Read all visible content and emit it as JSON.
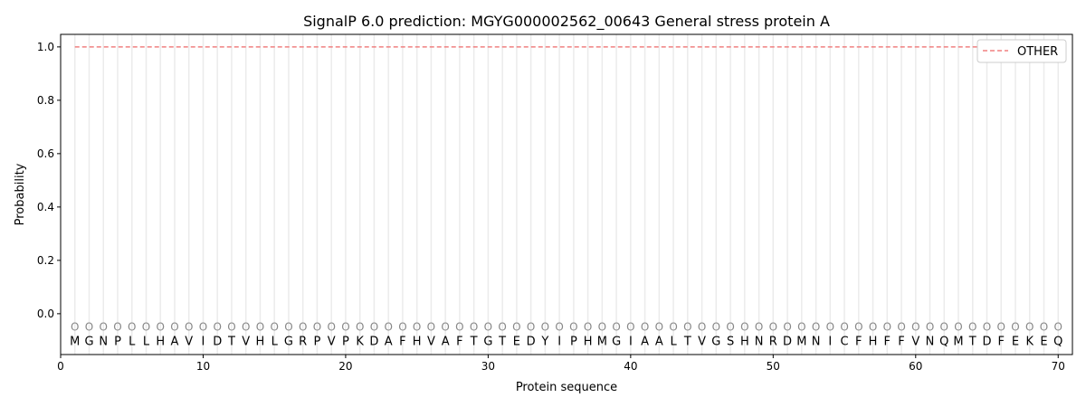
{
  "chart_data": {
    "type": "line",
    "title": "SignalP 6.0 prediction: MGYG000002562_00643 General stress protein A",
    "xlabel": "Protein sequence",
    "ylabel": "Probability",
    "xlim": [
      0,
      71
    ],
    "ylim": [
      -0.153,
      1.047
    ],
    "xticks": [
      0,
      10,
      20,
      30,
      40,
      50,
      60,
      70
    ],
    "yticks": [
      0.0,
      0.2,
      0.4,
      0.6,
      0.8,
      1.0
    ],
    "ytick_labels": [
      "0.0",
      "0.2",
      "0.4",
      "0.6",
      "0.8",
      "1.0"
    ],
    "sequence": "MGNPLLHAVIDTVHLGRPVPKDAFHVAFTGTEDYIPHMGIAALTVGSHNRDMNICFHFFVNQMTDFEKEQ",
    "predicted_labels": "OOOOOOOOOOOOOOOOOOOOOOOOOOOOOOOOOOOOOOOOOOOOOOOOOOOOOOOOOOOOOOOOOOOOOO",
    "series": [
      {
        "name": "OTHER",
        "color": "#f08080",
        "style": "dashed",
        "x_start": 1,
        "x_end": 70,
        "value": 1.0
      }
    ],
    "legend": "top-right",
    "grid": "vertical lines at each residue"
  }
}
